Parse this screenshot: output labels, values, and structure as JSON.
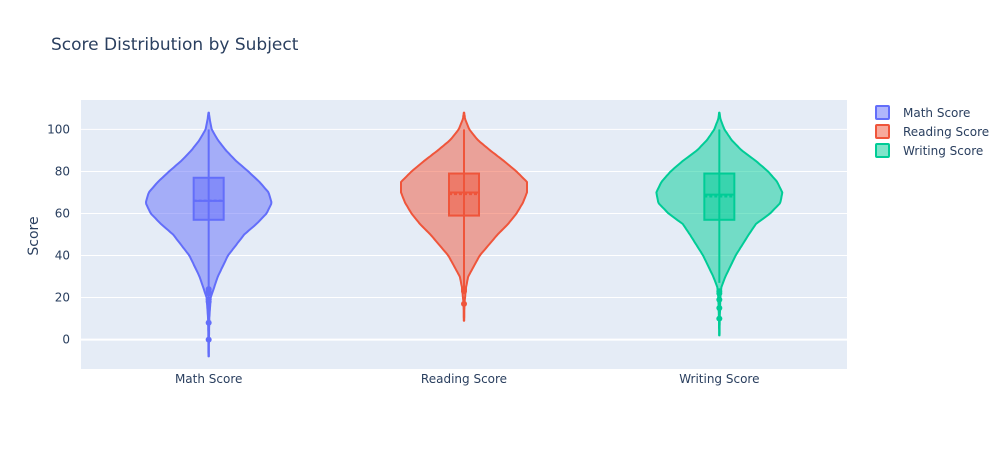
{
  "chart_data": {
    "type": "violin",
    "title": "Score Distribution by Subject",
    "xlabel": "",
    "ylabel": "Score",
    "categories": [
      "Math Score",
      "Reading Score",
      "Writing Score"
    ],
    "yticks": [
      0,
      20,
      40,
      60,
      80,
      100
    ],
    "ylim": [
      -14,
      114
    ],
    "grid": true,
    "legend_placement": "top-right",
    "colors": {
      "plot_bg": "#e5ecf6",
      "grid": "#ffffff",
      "text": "#2a3f5f"
    },
    "series": [
      {
        "name": "Math Score",
        "color": "#636efa",
        "violin_range": [
          -8,
          108
        ],
        "density": [
          [
            -8,
            0.2
          ],
          [
            0,
            0.3
          ],
          [
            10,
            0.6
          ],
          [
            20,
            2
          ],
          [
            30,
            9
          ],
          [
            40,
            19
          ],
          [
            50,
            35
          ],
          [
            55,
            47
          ],
          [
            60,
            57
          ],
          [
            65,
            62
          ],
          [
            70,
            59
          ],
          [
            75,
            50
          ],
          [
            80,
            39
          ],
          [
            85,
            27
          ],
          [
            90,
            17
          ],
          [
            95,
            9
          ],
          [
            100,
            3
          ],
          [
            105,
            1
          ],
          [
            108,
            0.2
          ]
        ],
        "box": {
          "min": 0,
          "q1": 57,
          "median": 66,
          "q3": 77,
          "max": 100,
          "mean": 66.1
        },
        "outliers": [
          0,
          8,
          18,
          19,
          22,
          23,
          24
        ]
      },
      {
        "name": "Reading Score",
        "color": "#ef553b",
        "violin_range": [
          9,
          108
        ],
        "density": [
          [
            9,
            0.2
          ],
          [
            17,
            0.4
          ],
          [
            25,
            2
          ],
          [
            30,
            4
          ],
          [
            40,
            15
          ],
          [
            50,
            32
          ],
          [
            55,
            42
          ],
          [
            60,
            50
          ],
          [
            65,
            56
          ],
          [
            70,
            60
          ],
          [
            75,
            60
          ],
          [
            80,
            50
          ],
          [
            85,
            38
          ],
          [
            90,
            25
          ],
          [
            95,
            13
          ],
          [
            100,
            5
          ],
          [
            105,
            1
          ],
          [
            108,
            0.2
          ]
        ],
        "box": {
          "min": 25,
          "q1": 59,
          "median": 70,
          "q3": 79,
          "max": 100,
          "mean": 69.2
        },
        "outliers": [
          17,
          23,
          24
        ]
      },
      {
        "name": "Writing Score",
        "color": "#00cc96",
        "violin_range": [
          2,
          108
        ],
        "density": [
          [
            2,
            0.2
          ],
          [
            10,
            0.4
          ],
          [
            20,
            1
          ],
          [
            25,
            2
          ],
          [
            30,
            6
          ],
          [
            40,
            16
          ],
          [
            50,
            29
          ],
          [
            55,
            36
          ],
          [
            60,
            50
          ],
          [
            65,
            60
          ],
          [
            70,
            62
          ],
          [
            75,
            57
          ],
          [
            80,
            48
          ],
          [
            85,
            36
          ],
          [
            90,
            22
          ],
          [
            95,
            12
          ],
          [
            100,
            5
          ],
          [
            105,
            1
          ],
          [
            108,
            0.2
          ]
        ],
        "box": {
          "min": 27,
          "q1": 57,
          "median": 69,
          "q3": 79,
          "max": 100,
          "mean": 68.1
        },
        "outliers": [
          10,
          15,
          19,
          22,
          23
        ]
      }
    ]
  }
}
